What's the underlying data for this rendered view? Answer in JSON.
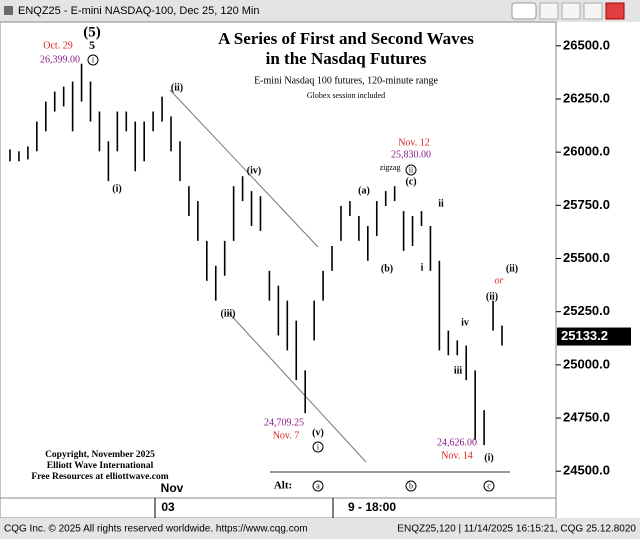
{
  "window_title": "ENQZ25 - E-mini NASDAQ-100, Dec 25, 120 Min",
  "chart_data": {
    "type": "ohlc",
    "title": [
      "A Series of First and Second Waves",
      "in the Nasdaq Futures"
    ],
    "subtitle": [
      "E-mini Nasdaq 100 futures, 120-minute range",
      "Globex session included"
    ],
    "color": "#000000",
    "highs": [
      26013,
      26004,
      26027,
      26144,
      26238,
      26285,
      26308,
      26332,
      26416,
      26332,
      26191,
      26051,
      26191,
      26191,
      26144,
      26144,
      26191,
      26261,
      26168,
      26051,
      25840,
      25770,
      25583,
      25466,
      25583,
      25840,
      25887,
      25817,
      25793,
      25442,
      25372,
      25302,
      25208,
      24974,
      25302,
      25442,
      25559,
      25747,
      25770,
      25700,
      25653,
      25770,
      25817,
      25840,
      25723,
      25700,
      25723,
      25653,
      25489,
      25161,
      25115,
      25091,
      24974,
      24787,
      25302,
      25185
    ],
    "lows": [
      25957,
      25957,
      25966,
      26004,
      26098,
      26191,
      26215,
      26098,
      26238,
      26144,
      26004,
      25864,
      26004,
      26098,
      25910,
      25957,
      26098,
      26144,
      26004,
      25864,
      25700,
      25583,
      25395,
      25302,
      25419,
      25583,
      25770,
      25653,
      25630,
      25302,
      25138,
      25068,
      24928,
      24773,
      25115,
      25302,
      25442,
      25583,
      25700,
      25583,
      25489,
      25606,
      25747,
      25770,
      25536,
      25559,
      25653,
      25442,
      25068,
      25045,
      25045,
      24928,
      24647,
      24623,
      25161,
      25091
    ],
    "ylim": [
      24374,
      26612
    ],
    "yticks": [
      {
        "value": 24500,
        "label": "24500.0"
      },
      {
        "value": 24750,
        "label": "24750.0"
      },
      {
        "value": 25000,
        "label": "25000.0"
      },
      {
        "value": 25250,
        "label": "25250.0"
      },
      {
        "value": 25500,
        "label": "25500.0"
      },
      {
        "value": 25750,
        "label": "25750.0"
      },
      {
        "value": 26000,
        "label": "26000.0"
      },
      {
        "value": 26250,
        "label": "26250.0"
      },
      {
        "value": 26500,
        "label": "26500.0"
      }
    ],
    "last_price": 25133.2,
    "x_labels": [
      "Nov",
      "03",
      "9 - 18:00"
    ],
    "annotations": [
      "Oct. 29",
      "26,399.00",
      "(5)",
      "5",
      "i",
      "(i)",
      "(ii)",
      "(iii)",
      "(iv)",
      "(v)",
      "i",
      "24,709.25",
      "Nov. 7",
      "(a)",
      "(b)",
      "(c)",
      "ii",
      "zigzag",
      "Nov. 12",
      "25,830.00",
      "ii",
      "i",
      "iv",
      "iii",
      "(ii)",
      "or",
      "(ii)",
      "24,626.00",
      "Nov. 14",
      "(i)"
    ],
    "alt": [
      "Alt:",
      "a",
      "b",
      "c"
    ],
    "copyright": [
      "Copyright, November 2025",
      "Elliott Wave International",
      "Free Resources at elliottwave.com"
    ]
  },
  "footer": [
    "CQG Inc. © 2025 All rights reserved worldwide. https://www.cqg.com",
    "ENQZ25,120 | 11/14/2025 16:15:21, CQG 25.12.8020"
  ]
}
